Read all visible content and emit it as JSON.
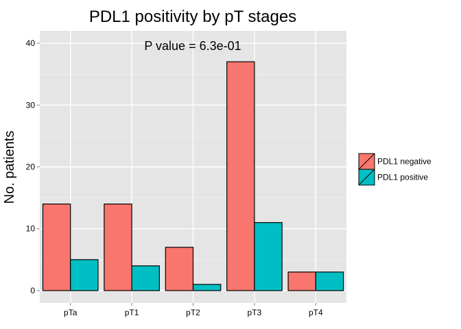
{
  "chart_data": {
    "type": "bar",
    "title": "PDL1 positivity by pT stages",
    "annotation": "P value = 6.3e-01",
    "xlabel": "",
    "ylabel": "No. patients",
    "categories": [
      "pTa",
      "pT1",
      "pT2",
      "pT3",
      "pT4"
    ],
    "series": [
      {
        "name": "PDL1 negative",
        "color": "#F8766D",
        "values": [
          14,
          14,
          7,
          37,
          3
        ]
      },
      {
        "name": "PDL1 positive",
        "color": "#00BFC4",
        "values": [
          5,
          4,
          1,
          11,
          3
        ]
      }
    ],
    "ylim": [
      -2,
      42
    ],
    "yticks": [
      0,
      10,
      20,
      30,
      40
    ],
    "grid": true,
    "legend_position": "right"
  }
}
